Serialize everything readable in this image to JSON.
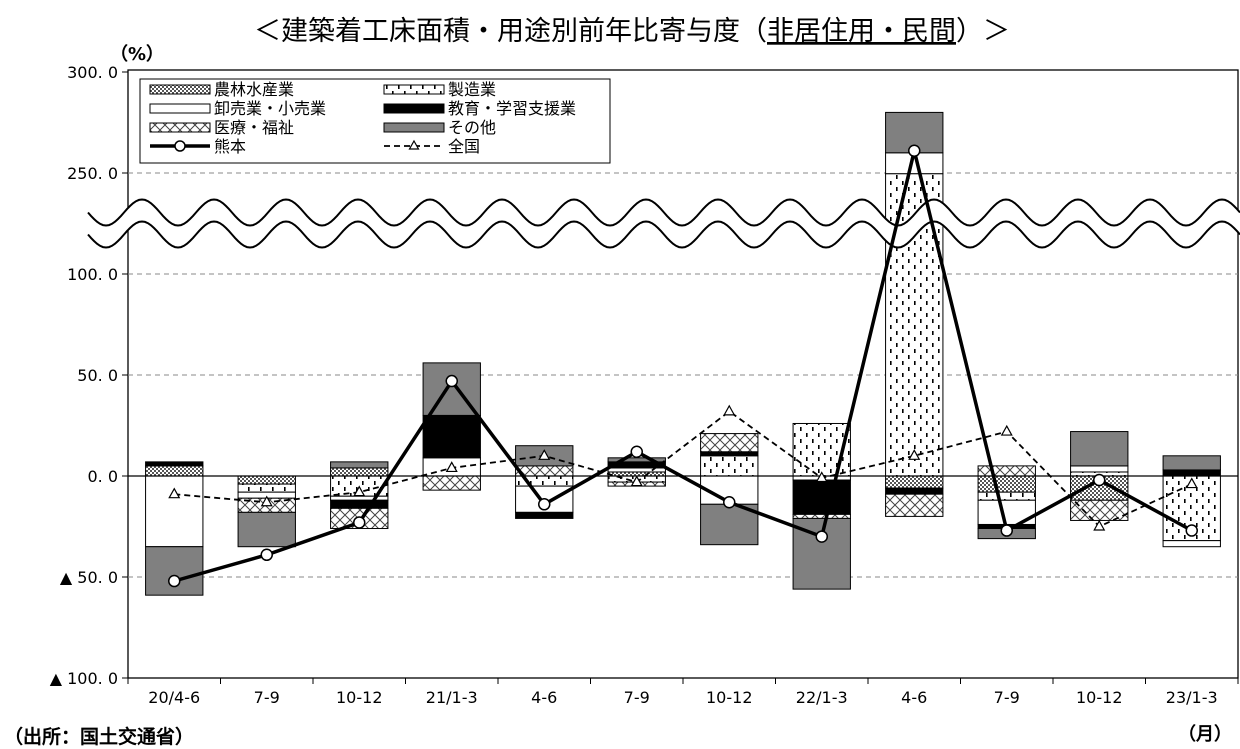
{
  "chart_data": {
    "type": "bar",
    "title": "＜建築着工床面積・用途別前年比寄与度（非居住用・民間）＞",
    "title_parts": [
      "＜建築着工床面積・用途別前年比寄与度（",
      "非居住用・民間",
      "）＞"
    ],
    "y_unit": "（%）",
    "x_unit": "（月）",
    "source": "（出所：国土交通省）",
    "categories": [
      "20/4-6",
      "7-9",
      "10-12",
      "21/1-3",
      "4-6",
      "7-9",
      "10-12",
      "22/1-3",
      "4-6",
      "7-9",
      "10-12",
      "23/1-3"
    ],
    "y_ticks": [
      {
        "value": 300,
        "label": "300. 0"
      },
      {
        "value": 250,
        "label": "250. 0"
      },
      {
        "value": 100,
        "label": "100. 0"
      },
      {
        "value": 50,
        "label": "50. 0"
      },
      {
        "value": 0,
        "label": "0. 0"
      },
      {
        "value": -50,
        "label": "▲ 50. 0"
      },
      {
        "value": -100,
        "label": "▲ 100. 0"
      }
    ],
    "y_axis_break": [
      100,
      250
    ],
    "ylim": [
      -100,
      300
    ],
    "grid": true,
    "legend_position": "top-left",
    "series": [
      {
        "name": "農林水産業",
        "kind": "bar",
        "fill": "agri",
        "values": [
          5,
          -4,
          4,
          0,
          0,
          2,
          0,
          0,
          -6,
          -8,
          -12,
          0
        ]
      },
      {
        "name": "製造業",
        "kind": "bar",
        "fill": "mfg",
        "values": [
          0,
          -4,
          -10,
          0,
          -5,
          -3,
          10,
          26,
          249,
          -4,
          2,
          -32
        ]
      },
      {
        "name": "卸売業・小売業",
        "kind": "bar",
        "fill": "retail",
        "values": [
          -35,
          -3,
          -2,
          9,
          -13,
          2,
          -14,
          -2,
          11,
          -12,
          3,
          -3
        ]
      },
      {
        "name": "教育・学習支援業",
        "kind": "bar",
        "fill": "edu",
        "values": [
          2,
          0,
          -4,
          21,
          -3,
          3,
          2,
          -17,
          -3,
          -2,
          0,
          3
        ]
      },
      {
        "name": "医療・福祉",
        "kind": "bar",
        "fill": "medical",
        "values": [
          0,
          -7,
          -10,
          -7,
          5,
          -2,
          9,
          -2,
          -11,
          5,
          -10,
          0
        ]
      },
      {
        "name": "その他",
        "kind": "bar",
        "fill": "other",
        "values": [
          -24,
          -17,
          3,
          26,
          10,
          2,
          -20,
          -35,
          20,
          -5,
          17,
          7
        ]
      },
      {
        "name": "熊本",
        "kind": "line",
        "style": "solid",
        "values": [
          -52,
          -39,
          -23,
          47,
          -14,
          12,
          -13,
          -30,
          261,
          -27,
          -2,
          -27
        ]
      },
      {
        "name": "全国",
        "kind": "line",
        "style": "dashed",
        "values": [
          -9,
          -13,
          -8,
          4,
          10,
          -3,
          32,
          -1,
          10,
          22,
          -25,
          -4
        ]
      }
    ]
  }
}
